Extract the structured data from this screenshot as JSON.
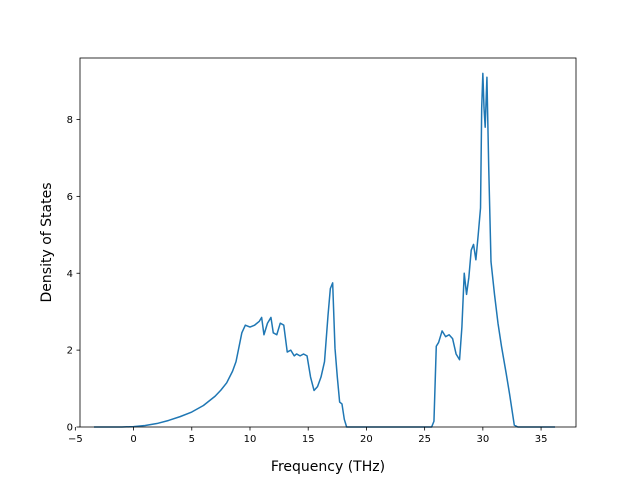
{
  "chart_data": {
    "type": "line",
    "title": "",
    "xlabel": "Frequency (THz)",
    "ylabel": "Density of States",
    "xlim": [
      -4.6,
      38
    ],
    "ylim": [
      0,
      9.6
    ],
    "xticks": [
      -5,
      0,
      5,
      10,
      15,
      20,
      25,
      30,
      35
    ],
    "yticks": [
      0,
      2,
      4,
      6,
      8
    ],
    "grid": false,
    "legend": "none",
    "series": [
      {
        "color": "#1f77b4",
        "x": [
          -3.4,
          -1,
          0,
          1,
          2,
          3,
          4,
          5,
          6,
          7,
          7.5,
          8,
          8.5,
          8.8,
          9.0,
          9.3,
          9.6,
          10.0,
          10.4,
          10.8,
          11.0,
          11.2,
          11.5,
          11.8,
          12.0,
          12.3,
          12.6,
          12.9,
          13.2,
          13.5,
          13.8,
          14.0,
          14.3,
          14.6,
          14.9,
          15.2,
          15.5,
          15.8,
          16.1,
          16.4,
          16.7,
          16.9,
          17.1,
          17.3,
          17.5,
          17.7,
          17.9,
          18.1,
          18.3,
          18.5,
          19.0,
          22.0,
          25.6,
          25.8,
          26.0,
          26.2,
          26.5,
          26.8,
          27.1,
          27.4,
          27.7,
          28.0,
          28.2,
          28.4,
          28.6,
          28.8,
          29.0,
          29.2,
          29.4,
          29.6,
          29.8,
          29.9,
          30.0,
          30.1,
          30.2,
          30.35,
          30.5,
          30.7,
          31.0,
          31.3,
          31.6,
          32.0,
          32.3,
          32.7,
          33.0,
          36.2
        ],
        "y": [
          0,
          0,
          0.01,
          0.04,
          0.09,
          0.17,
          0.27,
          0.39,
          0.56,
          0.8,
          0.96,
          1.15,
          1.45,
          1.7,
          2.0,
          2.45,
          2.65,
          2.6,
          2.65,
          2.75,
          2.85,
          2.4,
          2.7,
          2.85,
          2.45,
          2.4,
          2.7,
          2.65,
          1.95,
          2.0,
          1.85,
          1.9,
          1.85,
          1.9,
          1.85,
          1.3,
          0.95,
          1.05,
          1.3,
          1.7,
          2.9,
          3.6,
          3.75,
          2.05,
          1.3,
          0.65,
          0.6,
          0.2,
          0,
          0,
          0,
          0,
          0,
          0.15,
          2.1,
          2.2,
          2.5,
          2.35,
          2.4,
          2.3,
          1.9,
          1.75,
          2.6,
          4.0,
          3.45,
          3.9,
          4.6,
          4.75,
          4.35,
          5.0,
          5.7,
          8.3,
          9.2,
          8.3,
          7.8,
          9.1,
          6.8,
          4.3,
          3.45,
          2.7,
          2.1,
          1.4,
          0.85,
          0.05,
          0,
          0
        ]
      }
    ]
  }
}
